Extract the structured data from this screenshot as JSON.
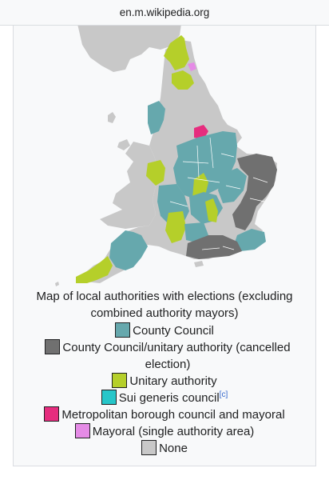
{
  "browser": {
    "url": "en.m.wikipedia.org"
  },
  "figure": {
    "caption": "Map of local authorities with elections (excluding combined authority mayors)",
    "legend": [
      {
        "label": "County Council",
        "color": "#66a8ad",
        "ref": ""
      },
      {
        "label": "County Council/unitary authority (cancelled election)",
        "color": "#707070",
        "ref": ""
      },
      {
        "label": "Unitary authority",
        "color": "#b5cf2a",
        "ref": ""
      },
      {
        "label": "Sui generis council",
        "color": "#26c6c9",
        "ref": "[c]"
      },
      {
        "label": "Metropolitan borough council and mayoral",
        "color": "#e62d7e",
        "ref": ""
      },
      {
        "label": "Mayoral (single authority area)",
        "color": "#e58be6",
        "ref": ""
      },
      {
        "label": "None",
        "color": "#c8c8c8",
        "ref": ""
      }
    ]
  },
  "map_colors": {
    "water": "#f8f9fa",
    "none": "#c8c8c8",
    "county": "#66a8ad",
    "cancelled": "#707070",
    "unitary": "#b5cf2a",
    "metro": "#e62d7e",
    "mayoral": "#e58be6"
  }
}
